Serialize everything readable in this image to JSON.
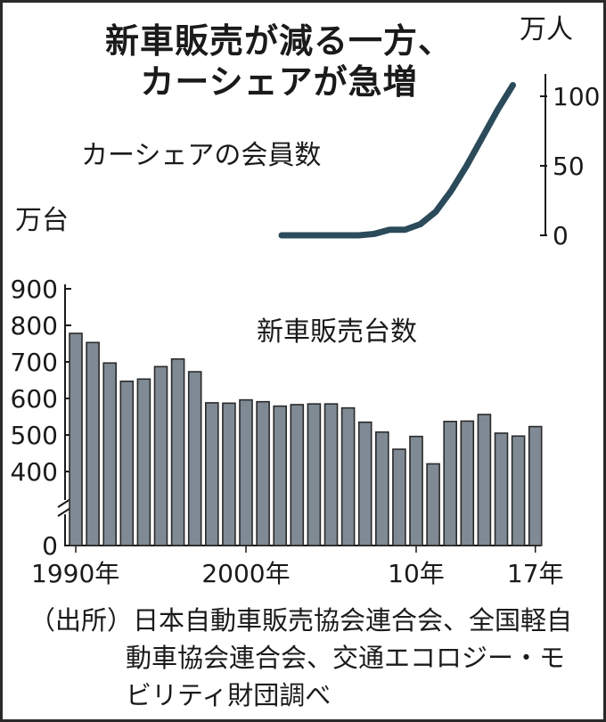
{
  "title": {
    "line1": "新車販売が減る一方、",
    "line2": "カーシェアが急増"
  },
  "source": "（出所）日本自動車販売協会連合会、全国軽自動車協会連合会、交通エコロジー・モビリティ財団調べ",
  "colors": {
    "bar_fill": "#7f8a94",
    "bar_stroke": "#2a2a2a",
    "line": "#2b4a5a",
    "axis": "#1a1a1a"
  },
  "chart_data": [
    {
      "type": "line",
      "title": "カーシェアの会員数",
      "unit_label": "万人",
      "ylim": [
        0,
        110
      ],
      "yticks": [
        0,
        50,
        100
      ],
      "x": [
        2002,
        2003,
        2004,
        2005,
        2006,
        2007,
        2008,
        2009,
        2010,
        2011,
        2012,
        2013,
        2014,
        2015,
        2016,
        2017
      ],
      "values": [
        0,
        0,
        0,
        0,
        0,
        0,
        1,
        4,
        4,
        8,
        17,
        32,
        50,
        70,
        90,
        108
      ],
      "grid": false
    },
    {
      "type": "bar",
      "title": "新車販売台数",
      "unit_label": "万台",
      "ylim": [
        0,
        900
      ],
      "axis_break": true,
      "yticks": [
        0,
        400,
        500,
        600,
        700,
        800,
        900
      ],
      "categories": [
        1990,
        1991,
        1992,
        1993,
        1994,
        1995,
        1996,
        1997,
        1998,
        1999,
        2000,
        2001,
        2002,
        2003,
        2004,
        2005,
        2006,
        2007,
        2008,
        2009,
        2010,
        2011,
        2012,
        2013,
        2014,
        2015,
        2016,
        2017
      ],
      "values": [
        778,
        753,
        697,
        647,
        653,
        687,
        708,
        673,
        588,
        587,
        596,
        591,
        579,
        583,
        585,
        585,
        574,
        535,
        508,
        461,
        496,
        421,
        537,
        538,
        556,
        505,
        497,
        523
      ],
      "xtick_labels": [
        {
          "year": 1990,
          "text": "1990年"
        },
        {
          "year": 2000,
          "text": "2000年"
        },
        {
          "year": 2010,
          "text": "10年"
        },
        {
          "year": 2017,
          "text": "17年"
        }
      ],
      "grid": false
    }
  ]
}
